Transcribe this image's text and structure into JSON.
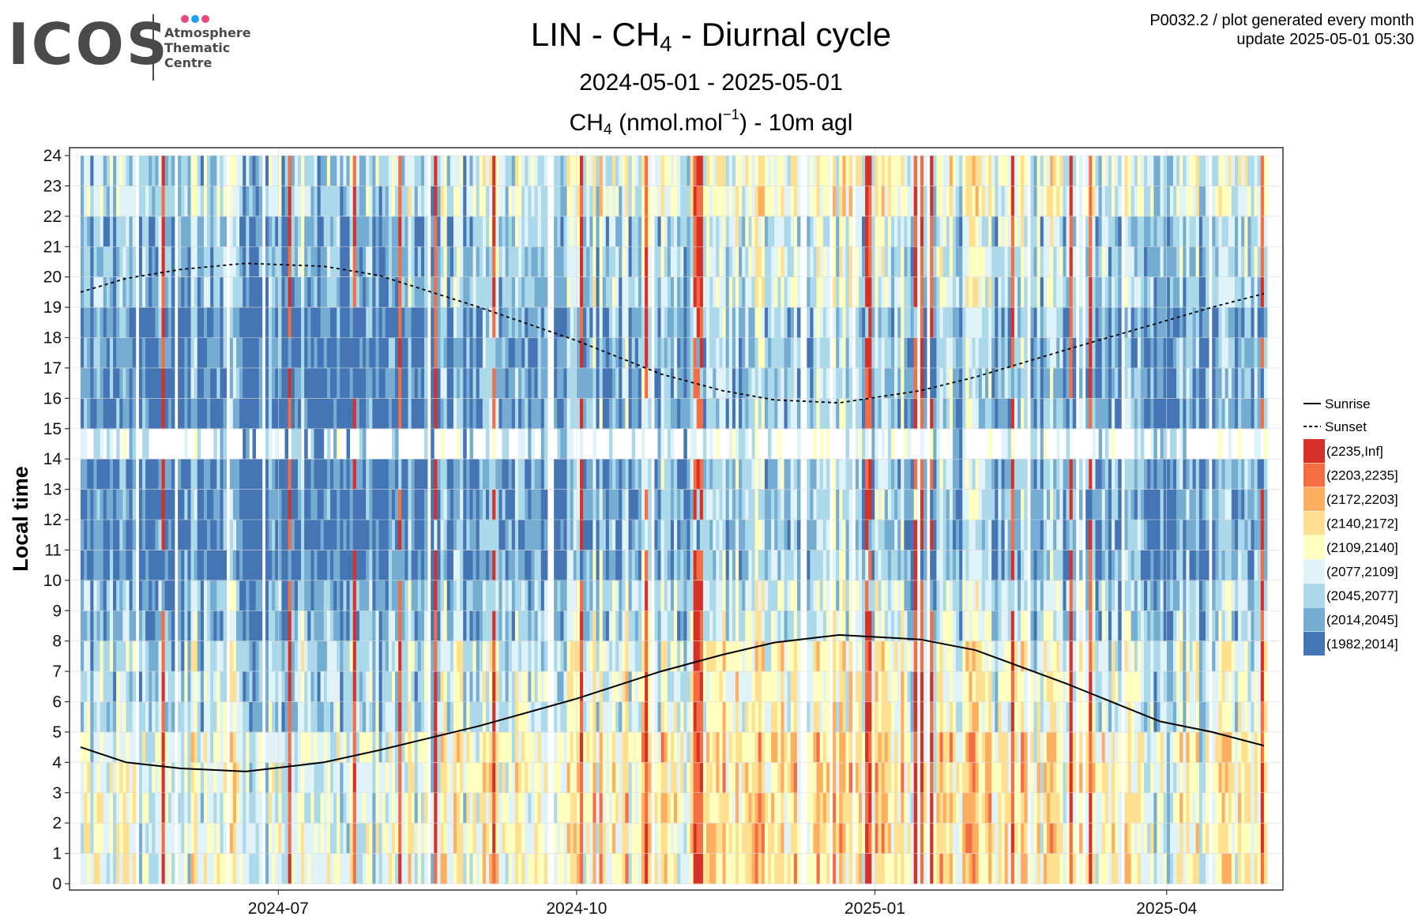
{
  "logo": {
    "wordmark": "ICOS",
    "dots": [
      "#e8477e",
      "#1ea0e6",
      "#e8477e"
    ],
    "lines": [
      "Atmosphere",
      "Thematic",
      "Centre"
    ]
  },
  "header": {
    "title_pre": "LIN - CH",
    "title_sub": "4",
    "title_post": " - Diurnal cycle",
    "subtitle": "2024-05-01 - 2025-05-01",
    "variable_pre": "CH",
    "variable_sub": "4",
    "variable_mid": " (nmol.mol",
    "variable_sup": "−1",
    "variable_post": ") - 10m agl"
  },
  "meta": {
    "line1": "P0032.2 / plot generated every month",
    "line2": "update  2025-05-01 05:30"
  },
  "chart_data": {
    "type": "heatmap",
    "ylabel": "Local time",
    "x_range": [
      "2024-05-01",
      "2025-05-01"
    ],
    "x_ticks": [
      "2024-07",
      "2024-10",
      "2025-01",
      "2025-04"
    ],
    "x_tick_dates": [
      "2024-07-01",
      "2024-10-01",
      "2025-01-01",
      "2025-04-01"
    ],
    "y_ticks": [
      0,
      1,
      2,
      3,
      4,
      5,
      6,
      7,
      8,
      9,
      10,
      11,
      12,
      13,
      14,
      15,
      16,
      17,
      18,
      19,
      20,
      21,
      22,
      23,
      24
    ],
    "y_range": [
      0,
      24
    ],
    "grid": true,
    "legend_position": "right",
    "color_bins": [
      {
        "label": "(2235,Inf]",
        "color": "#d73027"
      },
      {
        "label": "(2203,2235]",
        "color": "#f46d43"
      },
      {
        "label": "(2172,2203]",
        "color": "#fdae61"
      },
      {
        "label": "(2140,2172]",
        "color": "#fee090"
      },
      {
        "label": "(2109,2140]",
        "color": "#ffffbf"
      },
      {
        "label": "(2077,2109]",
        "color": "#e0f3f8"
      },
      {
        "label": "(2045,2077]",
        "color": "#abd9e9"
      },
      {
        "label": "(2014,2045]",
        "color": "#74add1"
      },
      {
        "label": "(1982,2014]",
        "color": "#4575b4"
      }
    ],
    "series": [
      {
        "name": "Sunrise",
        "style": "solid",
        "dates": [
          "2024-05-01",
          "2024-05-15",
          "2024-06-01",
          "2024-06-21",
          "2024-07-15",
          "2024-08-01",
          "2024-09-01",
          "2024-10-01",
          "2024-10-27",
          "2024-11-15",
          "2024-12-01",
          "2024-12-21",
          "2025-01-15",
          "2025-02-01",
          "2025-03-01",
          "2025-03-30",
          "2025-04-15",
          "2025-05-01"
        ],
        "values": [
          4.5,
          4.0,
          3.8,
          3.7,
          4.0,
          4.4,
          5.2,
          6.1,
          7.0,
          7.55,
          7.95,
          8.2,
          8.05,
          7.7,
          6.6,
          5.35,
          5.0,
          4.55
        ]
      },
      {
        "name": "Sunset",
        "style": "dashed",
        "dates": [
          "2024-05-01",
          "2024-05-15",
          "2024-06-01",
          "2024-06-21",
          "2024-07-15",
          "2024-08-01",
          "2024-09-01",
          "2024-10-01",
          "2024-10-27",
          "2024-11-15",
          "2024-12-01",
          "2024-12-21",
          "2025-01-15",
          "2025-02-01",
          "2025-03-01",
          "2025-03-30",
          "2025-04-15",
          "2025-05-01"
        ],
        "values": [
          19.5,
          19.95,
          20.25,
          20.45,
          20.35,
          20.05,
          19.0,
          17.9,
          16.8,
          16.25,
          15.95,
          15.85,
          16.25,
          16.7,
          17.6,
          18.5,
          19.0,
          19.45
        ]
      }
    ],
    "heatmap_grid": {
      "first_day": "2024-05-01",
      "days": 366,
      "hour_bins": [
        "0-1",
        "1-2",
        "2-3",
        "3-4",
        "4-5",
        "5-6",
        "6-7",
        "7-8",
        "8-9",
        "9-10",
        "10-11",
        "11-12",
        "12-13",
        "13-14",
        "14-15",
        "15-16",
        "16-17",
        "17-18",
        "18-19",
        "19-20",
        "20-21",
        "21-22",
        "22-23",
        "23-24"
      ],
      "hour_profile_bin_index": [
        4,
        4,
        4,
        4,
        4,
        5,
        5,
        5,
        6,
        6,
        7,
        7,
        7,
        7,
        5,
        7,
        7,
        7,
        7,
        6,
        6,
        6,
        5,
        5
      ],
      "notes": "Daily bin index (0 = highest class) per hour; high-concentration episodes (bin index 0) recorded per date below.",
      "high_episode_dates": [
        "2024-05-26",
        "2024-06-26",
        "2024-07-04",
        "2024-07-24",
        "2024-08-07",
        "2024-08-18",
        "2024-09-05",
        "2024-09-22",
        "2024-10-02",
        "2024-10-22",
        "2024-10-24",
        "2024-11-06",
        "2024-11-07",
        "2024-11-08",
        "2024-12-10",
        "2024-12-29",
        "2024-12-30",
        "2025-01-13",
        "2025-01-14",
        "2025-01-15",
        "2025-01-18",
        "2025-02-12",
        "2025-03-02",
        "2025-03-08",
        "2025-04-14",
        "2025-04-30"
      ]
    }
  }
}
